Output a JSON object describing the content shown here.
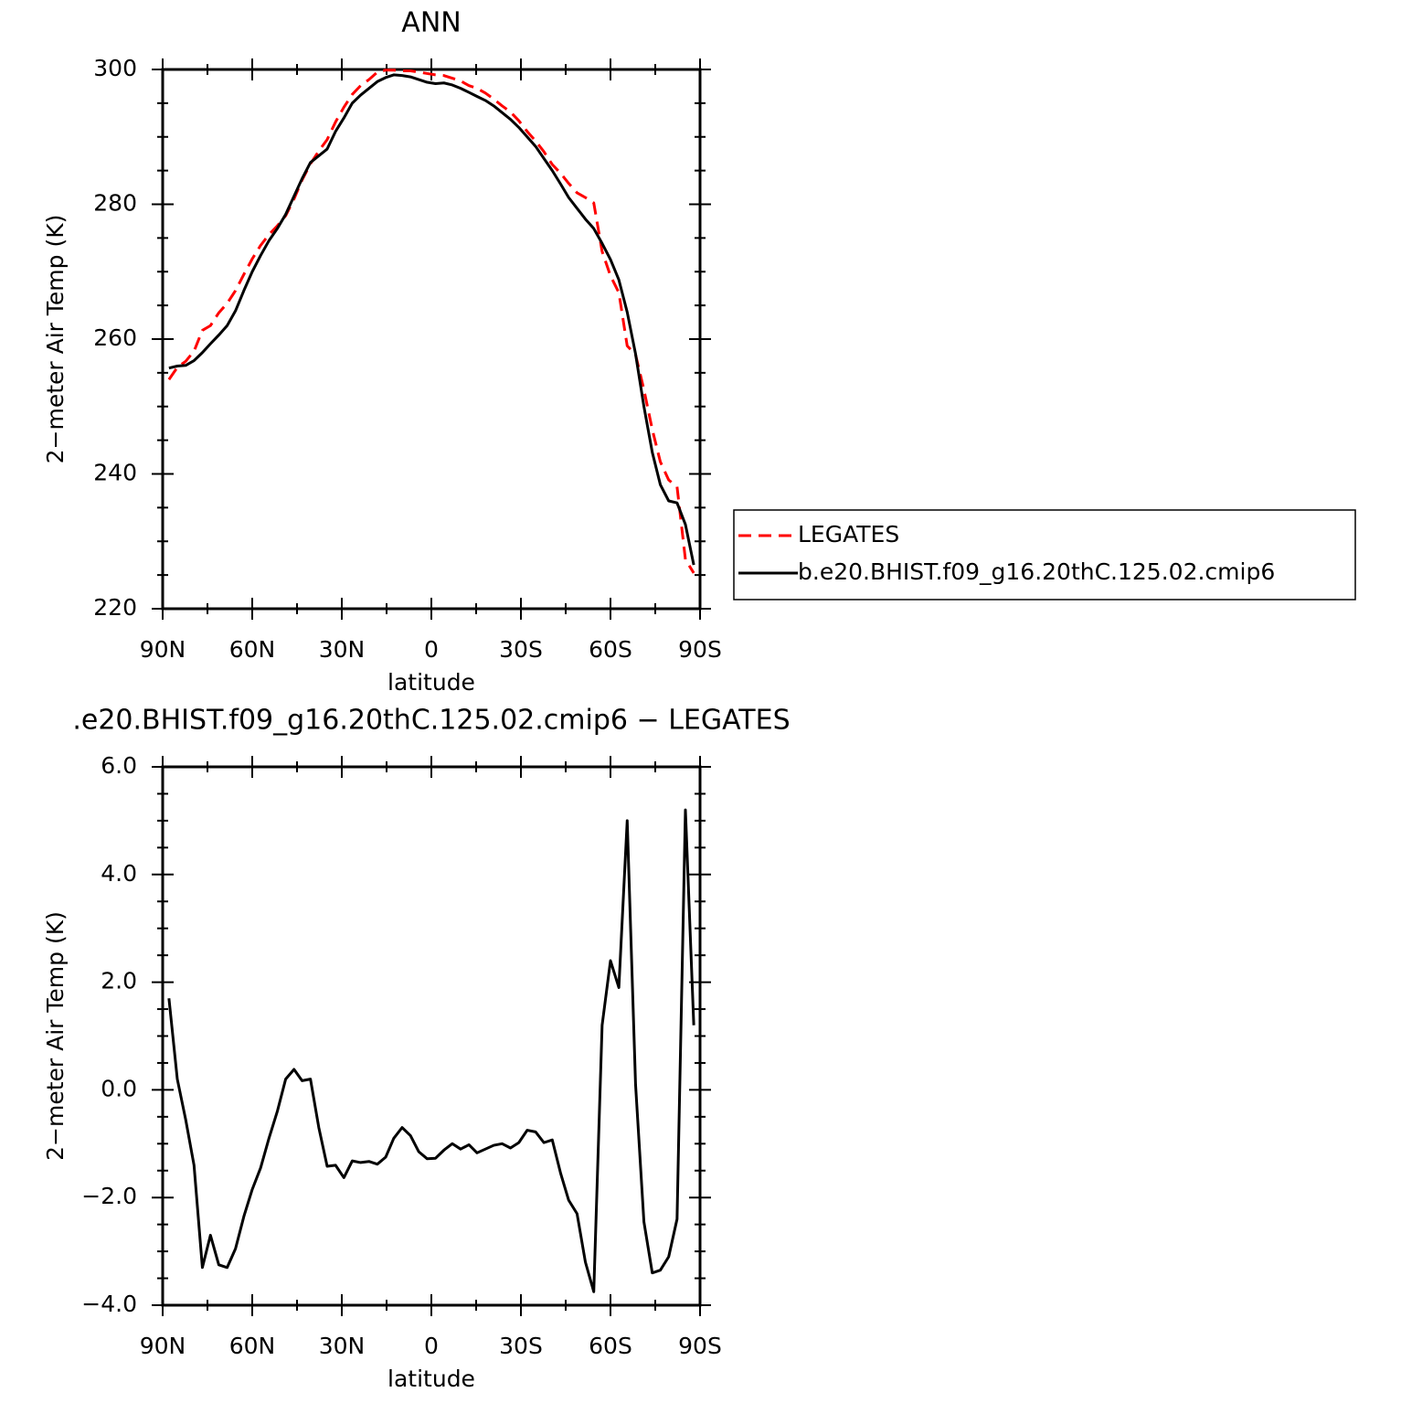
{
  "chart_data": [
    {
      "type": "line",
      "title": "ANN",
      "x_label": "latitude",
      "y_label": "2−meter Air Temp (K)",
      "x": [
        87.9,
        85.1,
        82.3,
        79.5,
        76.7,
        74.0,
        71.2,
        68.4,
        65.6,
        62.8,
        60.0,
        57.2,
        54.4,
        51.6,
        48.8,
        46.0,
        43.3,
        40.5,
        37.7,
        34.9,
        32.1,
        29.3,
        26.5,
        23.7,
        20.9,
        18.1,
        15.3,
        12.6,
        9.8,
        7.0,
        4.2,
        1.4,
        -1.4,
        -4.2,
        -7.0,
        -9.8,
        -12.6,
        -15.3,
        -18.1,
        -20.9,
        -23.7,
        -26.5,
        -29.3,
        -32.1,
        -34.9,
        -37.7,
        -40.5,
        -43.3,
        -46.0,
        -48.8,
        -51.6,
        -54.4,
        -57.2,
        -60.0,
        -62.8,
        -65.6,
        -68.4,
        -71.2,
        -74.0,
        -76.7,
        -79.5,
        -82.3,
        -85.1,
        -87.9
      ],
      "series": [
        {
          "name": "LEGATES",
          "color": "#ff0000",
          "dash": "dashed",
          "values": [
            254.0,
            255.8,
            256.7,
            258.2,
            261.3,
            262.0,
            263.9,
            265.3,
            267.2,
            269.6,
            271.9,
            273.9,
            275.5,
            276.8,
            278.3,
            280.8,
            283.6,
            286.0,
            287.9,
            289.6,
            292.2,
            294.4,
            296.3,
            297.6,
            298.5,
            299.6,
            299.9,
            299.9,
            299.8,
            299.8,
            299.6,
            299.4,
            299.2,
            299.1,
            298.7,
            298.3,
            297.6,
            297.2,
            296.5,
            295.6,
            294.6,
            293.7,
            292.4,
            290.8,
            289.4,
            287.8,
            285.9,
            284.6,
            283.1,
            281.7,
            281.0,
            280.2,
            273.0,
            269.4,
            266.9,
            259.0,
            257.7,
            252.5,
            246.6,
            241.8,
            239.1,
            238.1,
            227.3,
            225.3
          ]
        },
        {
          "name": "b.e20.BHIST.f09_g16.20thC.125.02.cmip6",
          "color": "#000000",
          "dash": "solid",
          "values": [
            255.7,
            256.0,
            256.1,
            256.8,
            258.0,
            259.3,
            260.6,
            262.0,
            264.2,
            267.2,
            270.0,
            272.4,
            274.6,
            276.4,
            278.5,
            281.2,
            283.8,
            286.2,
            287.2,
            288.2,
            290.8,
            292.8,
            295.0,
            296.2,
            297.2,
            298.2,
            298.8,
            299.2,
            299.1,
            298.9,
            298.5,
            298.1,
            297.9,
            298.0,
            297.7,
            297.2,
            296.6,
            296.0,
            295.4,
            294.6,
            293.6,
            292.6,
            291.4,
            290.0,
            288.6,
            286.8,
            285.0,
            283.0,
            281.0,
            279.4,
            277.8,
            276.4,
            274.2,
            271.8,
            268.8,
            264.0,
            257.8,
            250.0,
            243.2,
            238.4,
            236.0,
            235.7,
            232.5,
            226.5
          ]
        }
      ],
      "xlim": [
        90,
        -90
      ],
      "xticks": [
        {
          "value": 90,
          "label": "90N"
        },
        {
          "value": 60,
          "label": "60N"
        },
        {
          "value": 30,
          "label": "30N"
        },
        0,
        {
          "value": -30,
          "label": "30S"
        },
        {
          "value": -60,
          "label": "60S"
        },
        {
          "value": -90,
          "label": "90S"
        }
      ],
      "xminor": [
        75,
        45,
        15,
        -15,
        -45,
        -75
      ],
      "ylim": [
        220,
        300
      ],
      "yticks": [
        220,
        240,
        260,
        280,
        300
      ],
      "yminor": [
        225,
        230,
        235,
        245,
        250,
        255,
        265,
        270,
        275,
        285,
        290,
        295
      ],
      "legend": "outside-right"
    },
    {
      "type": "line",
      "title": ".e20.BHIST.f09_g16.20thC.125.02.cmip6 − LEGATES",
      "x_label": "latitude",
      "y_label": "2−meter Air Temp (K)",
      "x": [
        87.9,
        85.1,
        82.3,
        79.5,
        76.7,
        74.0,
        71.2,
        68.4,
        65.6,
        62.8,
        60.0,
        57.2,
        54.4,
        51.6,
        48.8,
        46.0,
        43.3,
        40.5,
        37.7,
        34.9,
        32.1,
        29.3,
        26.5,
        23.7,
        20.9,
        18.1,
        15.3,
        12.6,
        9.8,
        7.0,
        4.2,
        1.4,
        -1.4,
        -4.2,
        -7.0,
        -9.8,
        -12.6,
        -15.3,
        -18.1,
        -20.9,
        -23.7,
        -26.5,
        -29.3,
        -32.1,
        -34.9,
        -37.7,
        -40.5,
        -43.3,
        -46.0,
        -48.8,
        -51.6,
        -54.4,
        -57.2,
        -60.0,
        -62.8,
        -65.6,
        -68.4,
        -71.2,
        -74.0,
        -76.7,
        -79.5,
        -82.3,
        -85.1,
        -87.9
      ],
      "values": [
        1.7,
        0.2,
        -0.55,
        -1.4,
        -3.3,
        -2.7,
        -3.25,
        -3.3,
        -2.95,
        -2.35,
        -1.85,
        -1.45,
        -0.9,
        -0.4,
        0.2,
        0.38,
        0.17,
        0.2,
        -0.7,
        -1.42,
        -1.4,
        -1.63,
        -1.32,
        -1.35,
        -1.33,
        -1.38,
        -1.25,
        -0.9,
        -0.7,
        -0.85,
        -1.15,
        -1.28,
        -1.27,
        -1.12,
        -1.0,
        -1.1,
        -1.02,
        -1.17,
        -1.1,
        -1.03,
        -1.0,
        -1.08,
        -0.98,
        -0.75,
        -0.78,
        -0.98,
        -0.93,
        -1.55,
        -2.05,
        -2.3,
        -3.2,
        -3.75,
        1.2,
        2.4,
        1.9,
        5.0,
        0.1,
        -2.45,
        -3.4,
        -3.35,
        -3.1,
        -2.4,
        5.2,
        1.2
      ],
      "color": "#000000",
      "dash": "solid",
      "xlim": [
        90,
        -90
      ],
      "xticks": [
        {
          "value": 90,
          "label": "90N"
        },
        {
          "value": 60,
          "label": "60N"
        },
        {
          "value": 30,
          "label": "30N"
        },
        0,
        {
          "value": -30,
          "label": "30S"
        },
        {
          "value": -60,
          "label": "60S"
        },
        {
          "value": -90,
          "label": "90S"
        }
      ],
      "xminor": [
        75,
        45,
        15,
        -15,
        -45,
        -75
      ],
      "ylim": [
        -4,
        6
      ],
      "yticks": [
        {
          "value": -4,
          "label": "−4.0"
        },
        {
          "value": -2,
          "label": "−2.0"
        },
        {
          "value": 0,
          "label": "0.0"
        },
        {
          "value": 2,
          "label": "2.0"
        },
        {
          "value": 4,
          "label": "4.0"
        },
        {
          "value": 6,
          "label": "6.0"
        }
      ],
      "yminor": [
        -3.5,
        -3,
        -2.5,
        -1.5,
        -1,
        -0.5,
        0.5,
        1,
        1.5,
        2.5,
        3,
        3.5,
        4.5,
        5,
        5.5
      ]
    }
  ]
}
